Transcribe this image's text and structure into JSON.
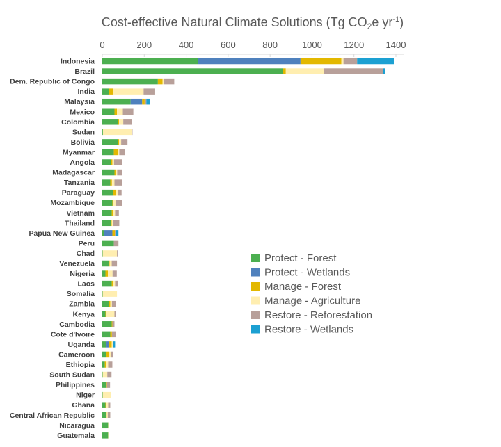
{
  "chart_data": {
    "type": "bar",
    "orientation": "horizontal",
    "stacked": true,
    "title": {
      "main": "Cost-effective Natural Climate Solutions (Tg CO",
      "sub2": "2",
      "mid": "e yr",
      "sup": "-1",
      "end": ")"
    },
    "xlim": [
      0,
      1400
    ],
    "x_ticks": [
      "0",
      "200",
      "400",
      "600",
      "800",
      "1000",
      "1200",
      "1400"
    ],
    "grid": false,
    "legend_position": "right",
    "categories": [
      "Indonesia",
      "Brazil",
      "Dem. Republic of Congo",
      "India",
      "Malaysia",
      "Mexico",
      "Colombia",
      "Sudan",
      "Bolivia",
      "Myanmar",
      "Angola",
      "Madagascar",
      "Tanzania",
      "Paraguay",
      "Mozambique",
      "Vietnam",
      "Thailand",
      "Papua New Guinea",
      "Peru",
      "Chad",
      "Venezuela",
      "Nigeria",
      "Laos",
      "Somalia",
      "Zambia",
      "Kenya",
      "Cambodia",
      "Cote d'Ivoire",
      "Uganda",
      "Cameroon",
      "Ethiopia",
      "South Sudan",
      "Philippines",
      "Niger",
      "Ghana",
      "Central African Republic",
      "Nicaragua",
      "Guatemala"
    ],
    "series": [
      {
        "name": "Protect - Forest",
        "color": "#4caf50",
        "values": [
          455,
          860,
          265,
          30,
          135,
          58,
          75,
          3,
          75,
          55,
          40,
          58,
          38,
          52,
          48,
          45,
          40,
          8,
          55,
          2,
          30,
          15,
          45,
          2,
          30,
          15,
          45,
          38,
          20,
          20,
          12,
          2,
          20,
          2,
          15,
          18,
          28,
          28
        ]
      },
      {
        "name": "Protect - Wetlands",
        "color": "#4f81bd",
        "values": [
          490,
          0,
          0,
          0,
          55,
          0,
          0,
          0,
          0,
          0,
          0,
          0,
          0,
          0,
          0,
          0,
          0,
          40,
          0,
          0,
          0,
          0,
          0,
          0,
          0,
          0,
          0,
          0,
          10,
          0,
          0,
          0,
          0,
          0,
          0,
          0,
          0,
          0
        ]
      },
      {
        "name": "Manage - Forest",
        "color": "#e3b800",
        "values": [
          195,
          15,
          22,
          22,
          12,
          12,
          5,
          0,
          5,
          18,
          8,
          5,
          8,
          12,
          5,
          8,
          5,
          12,
          0,
          0,
          5,
          12,
          6,
          0,
          8,
          3,
          3,
          8,
          15,
          12,
          8,
          0,
          2,
          0,
          5,
          3,
          0,
          0
        ]
      },
      {
        "name": "Manage - Agriculture",
        "color": "#ffeeb0",
        "values": [
          10,
          180,
          8,
          145,
          0,
          28,
          20,
          138,
          10,
          8,
          8,
          8,
          12,
          12,
          10,
          8,
          8,
          0,
          0,
          68,
          10,
          22,
          10,
          68,
          8,
          40,
          0,
          0,
          8,
          8,
          8,
          22,
          0,
          40,
          8,
          5,
          2,
          2
        ]
      },
      {
        "name": "Restore - Reforestation",
        "color": "#b8a09a",
        "values": [
          65,
          285,
          48,
          55,
          8,
          50,
          40,
          3,
          30,
          28,
          40,
          22,
          38,
          16,
          30,
          18,
          28,
          5,
          22,
          3,
          25,
          20,
          12,
          0,
          20,
          8,
          10,
          18,
          0,
          10,
          20,
          20,
          15,
          0,
          10,
          12,
          3,
          3
        ]
      },
      {
        "name": "Restore - Wetlands",
        "color": "#1ca0d2",
        "values": [
          175,
          8,
          0,
          0,
          18,
          0,
          0,
          0,
          0,
          0,
          0,
          0,
          0,
          0,
          0,
          0,
          0,
          12,
          0,
          0,
          0,
          0,
          0,
          0,
          0,
          0,
          0,
          0,
          8,
          0,
          0,
          0,
          0,
          0,
          0,
          0,
          0,
          0
        ]
      }
    ]
  }
}
